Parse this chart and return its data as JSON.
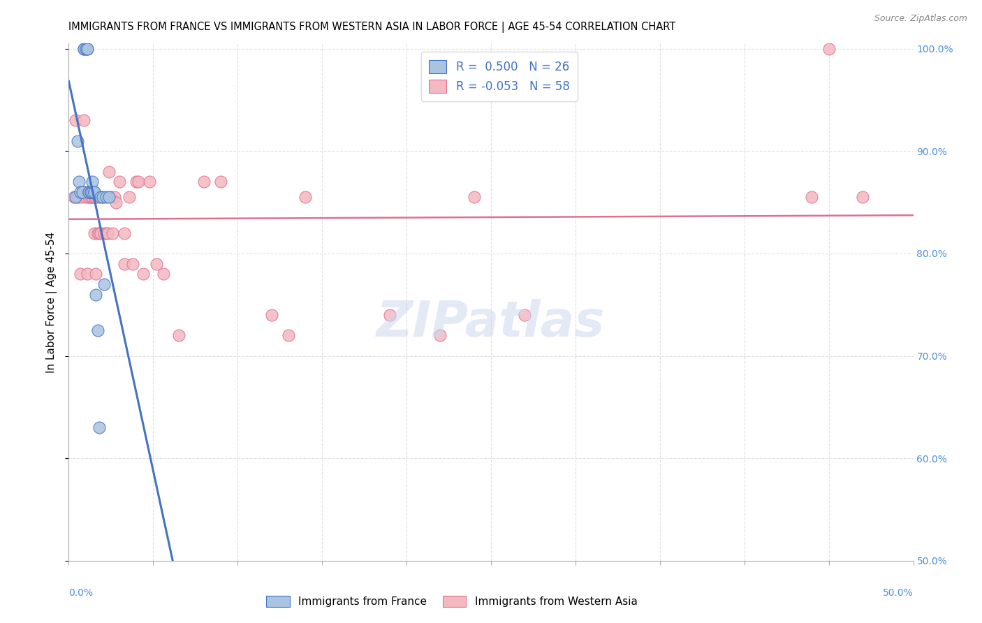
{
  "title": "IMMIGRANTS FROM FRANCE VS IMMIGRANTS FROM WESTERN ASIA IN LABOR FORCE | AGE 45-54 CORRELATION CHART",
  "source": "Source: ZipAtlas.com",
  "ylabel": "In Labor Force | Age 45-54",
  "xmin": 0.0,
  "xmax": 0.5,
  "ymin": 0.5,
  "ymax": 1.005,
  "right_yticks": [
    0.5,
    0.6,
    0.7,
    0.8,
    0.9,
    1.0
  ],
  "right_yticklabels": [
    "50.0%",
    "60.0%",
    "70.0%",
    "80.0%",
    "90.0%",
    "100.0%"
  ],
  "france_R": 0.5,
  "france_N": 26,
  "western_asia_R": -0.053,
  "western_asia_N": 58,
  "france_color": "#a8c4e0",
  "france_line_color": "#4472c4",
  "western_asia_color": "#f4b8c1",
  "western_asia_line_color": "#e07090",
  "france_points_x": [
    0.004,
    0.005,
    0.006,
    0.007,
    0.008,
    0.009,
    0.009,
    0.01,
    0.011,
    0.011,
    0.012,
    0.012,
    0.013,
    0.013,
    0.014,
    0.014,
    0.015,
    0.015,
    0.016,
    0.017,
    0.018,
    0.019,
    0.02,
    0.021,
    0.022,
    0.024
  ],
  "france_points_y": [
    0.855,
    0.91,
    0.87,
    0.86,
    0.86,
    1.0,
    1.0,
    1.0,
    1.0,
    1.0,
    0.86,
    0.86,
    0.86,
    0.86,
    0.87,
    0.86,
    0.86,
    0.86,
    0.76,
    0.725,
    0.63,
    0.855,
    0.855,
    0.77,
    0.855,
    0.855
  ],
  "western_asia_points_x": [
    0.003,
    0.004,
    0.005,
    0.006,
    0.007,
    0.008,
    0.009,
    0.009,
    0.01,
    0.01,
    0.011,
    0.012,
    0.012,
    0.013,
    0.013,
    0.014,
    0.014,
    0.015,
    0.015,
    0.016,
    0.016,
    0.017,
    0.017,
    0.018,
    0.019,
    0.02,
    0.021,
    0.022,
    0.023,
    0.024,
    0.025,
    0.026,
    0.027,
    0.028,
    0.03,
    0.033,
    0.033,
    0.036,
    0.038,
    0.04,
    0.041,
    0.044,
    0.048,
    0.052,
    0.056,
    0.065,
    0.08,
    0.09,
    0.12,
    0.13,
    0.14,
    0.19,
    0.22,
    0.24,
    0.27,
    0.44,
    0.45,
    0.47
  ],
  "western_asia_points_y": [
    0.855,
    0.93,
    0.855,
    0.855,
    0.78,
    0.855,
    0.93,
    0.86,
    0.855,
    0.86,
    0.78,
    0.855,
    0.855,
    0.86,
    0.855,
    0.855,
    0.855,
    0.855,
    0.82,
    0.855,
    0.78,
    0.855,
    0.82,
    0.82,
    0.82,
    0.855,
    0.82,
    0.82,
    0.82,
    0.88,
    0.855,
    0.82,
    0.855,
    0.85,
    0.87,
    0.82,
    0.79,
    0.855,
    0.79,
    0.87,
    0.87,
    0.78,
    0.87,
    0.79,
    0.78,
    0.72,
    0.87,
    0.87,
    0.74,
    0.72,
    0.855,
    0.74,
    0.72,
    0.855,
    0.74,
    0.855,
    1.0,
    0.855
  ],
  "watermark": "ZIPatlas",
  "background_color": "#ffffff",
  "grid_color": "#e0e0e0",
  "title_fontsize": 10.5,
  "source_fontsize": 9
}
